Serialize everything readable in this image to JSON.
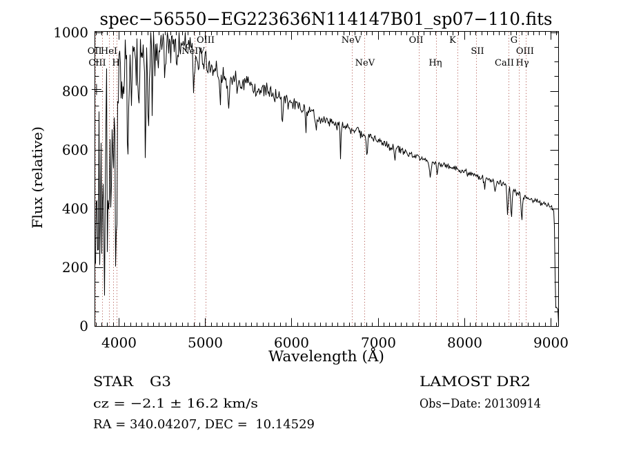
{
  "title": "spec−56550−EG223636N114147B01_sp07−110.fits",
  "axes": {
    "xlabel": "Wavelength (Å)",
    "ylabel": "Flux (relative)"
  },
  "annotations": {
    "class_label": "STAR",
    "subclass": "G3",
    "survey": "LAMOST DR2",
    "cz": "cz = −2.1 ± 16.2 km/s",
    "obs_date": "Obs−Date: 20130914",
    "ra_dec": "RA = 340.04207, DEC =  10.14529"
  },
  "chart_data": {
    "type": "line",
    "title": "spec−56550−EG223636N114147B01_sp07−110.fits",
    "xlabel": "Wavelength (Å)",
    "ylabel": "Flux (relative)",
    "xlim": [
      3720,
      9090
    ],
    "ylim": [
      0,
      1000
    ],
    "x_ticks": [
      4000,
      5000,
      6000,
      7000,
      8000,
      9000
    ],
    "y_ticks": [
      0,
      200,
      400,
      600,
      800,
      1000
    ],
    "grid": false,
    "series": [
      {
        "name": "spectrum",
        "color": "#000000",
        "noise_seed": 1337,
        "continuum_points": [
          [
            3715,
            470
          ],
          [
            3728,
            590
          ],
          [
            3745,
            670
          ],
          [
            3765,
            720
          ],
          [
            3790,
            760
          ],
          [
            3815,
            790
          ],
          [
            3845,
            818
          ],
          [
            3875,
            840
          ],
          [
            3905,
            858
          ],
          [
            3945,
            868
          ],
          [
            3985,
            878
          ],
          [
            4025,
            888
          ],
          [
            4065,
            896
          ],
          [
            4105,
            904
          ],
          [
            4155,
            912
          ],
          [
            4205,
            918
          ],
          [
            4255,
            924
          ],
          [
            4300,
            918
          ],
          [
            4355,
            936
          ],
          [
            4405,
            948
          ],
          [
            4455,
            958
          ],
          [
            4505,
            963
          ],
          [
            4565,
            967
          ],
          [
            4625,
            968
          ],
          [
            4685,
            966
          ],
          [
            4745,
            960
          ],
          [
            4805,
            950
          ],
          [
            4865,
            938
          ],
          [
            4925,
            928
          ],
          [
            4985,
            906
          ],
          [
            5025,
            888
          ],
          [
            5085,
            872
          ],
          [
            5145,
            861
          ],
          [
            5205,
            851
          ],
          [
            5265,
            843
          ],
          [
            5325,
            836
          ],
          [
            5425,
            828
          ],
          [
            5505,
            816
          ],
          [
            5605,
            803
          ],
          [
            5705,
            795
          ],
          [
            5825,
            787
          ],
          [
            5905,
            774
          ],
          [
            6005,
            757
          ],
          [
            6105,
            744
          ],
          [
            6225,
            728
          ],
          [
            6305,
            715
          ],
          [
            6405,
            701
          ],
          [
            6505,
            689
          ],
          [
            6625,
            681
          ],
          [
            6705,
            668
          ],
          [
            6805,
            655
          ],
          [
            6905,
            641
          ],
          [
            7025,
            628
          ],
          [
            7105,
            618
          ],
          [
            7205,
            606
          ],
          [
            7305,
            594
          ],
          [
            7425,
            583
          ],
          [
            7505,
            572
          ],
          [
            7605,
            562
          ],
          [
            7705,
            553
          ],
          [
            7825,
            545
          ],
          [
            7905,
            535
          ],
          [
            8005,
            524
          ],
          [
            8105,
            513
          ],
          [
            8225,
            502
          ],
          [
            8305,
            495
          ],
          [
            8405,
            490
          ],
          [
            8460,
            487
          ],
          [
            8525,
            469
          ],
          [
            8585,
            458
          ],
          [
            8645,
            448
          ],
          [
            8700,
            440
          ],
          [
            8785,
            430
          ],
          [
            8865,
            421
          ],
          [
            8940,
            415
          ],
          [
            9000,
            410
          ],
          [
            9030,
            402
          ],
          [
            9042,
            330
          ],
          [
            9050,
            120
          ],
          [
            9056,
            62
          ],
          [
            9080,
            58
          ],
          [
            9086,
            8
          ]
        ],
        "noise_amplitude_points": [
          [
            3715,
            330
          ],
          [
            3755,
            315
          ],
          [
            3795,
            295
          ],
          [
            3835,
            268
          ],
          [
            3875,
            248
          ],
          [
            3915,
            238
          ],
          [
            3955,
            232
          ],
          [
            3995,
            195
          ],
          [
            4035,
            148
          ],
          [
            4085,
            118
          ],
          [
            4155,
            98
          ],
          [
            4255,
            84
          ],
          [
            4355,
            74
          ],
          [
            4455,
            64
          ],
          [
            4555,
            57
          ],
          [
            4705,
            51
          ],
          [
            4865,
            45
          ],
          [
            5005,
            41
          ],
          [
            5205,
            35
          ],
          [
            5405,
            29
          ],
          [
            5605,
            25
          ],
          [
            5805,
            22
          ],
          [
            6005,
            20
          ],
          [
            6205,
            18
          ],
          [
            6405,
            16
          ],
          [
            6605,
            15
          ],
          [
            6905,
            13
          ],
          [
            7205,
            12
          ],
          [
            7505,
            11
          ],
          [
            7805,
            10
          ],
          [
            8105,
            10
          ],
          [
            8405,
            9
          ],
          [
            8705,
            9
          ],
          [
            9005,
            8
          ],
          [
            9086,
            7
          ]
        ],
        "absorption_features": [
          [
            3727,
            255,
            7
          ],
          [
            3752,
            390,
            9
          ],
          [
            3775,
            315,
            7
          ],
          [
            3799,
            355,
            8
          ],
          [
            3821,
            295,
            7
          ],
          [
            3836,
            325,
            7
          ],
          [
            3861,
            305,
            7
          ],
          [
            3889,
            395,
            8
          ],
          [
            3913,
            325,
            6
          ],
          [
            3934,
            425,
            8
          ],
          [
            3953,
            295,
            6
          ],
          [
            3969,
            650,
            8
          ],
          [
            4046,
            155,
            6
          ],
          [
            4102,
            275,
            8
          ],
          [
            4145,
            115,
            6
          ],
          [
            4227,
            165,
            6
          ],
          [
            4305,
            345,
            7
          ],
          [
            4341,
            305,
            7
          ],
          [
            4384,
            155,
            6
          ],
          [
            4456,
            115,
            5
          ],
          [
            4532,
            95,
            5
          ],
          [
            4669,
            88,
            5
          ],
          [
            4861,
            160,
            7
          ],
          [
            4922,
            78,
            5
          ],
          [
            5172,
            92,
            9
          ],
          [
            5270,
            105,
            7
          ],
          [
            5892,
            100,
            7
          ],
          [
            6163,
            58,
            6
          ],
          [
            6283,
            52,
            6
          ],
          [
            6563,
            118,
            5
          ],
          [
            6871,
            68,
            7
          ],
          [
            7192,
            44,
            6
          ],
          [
            7602,
            52,
            9
          ],
          [
            7682,
            38,
            6
          ],
          [
            8232,
            38,
            6
          ],
          [
            8352,
            42,
            6
          ],
          [
            8498,
            98,
            7
          ],
          [
            8542,
            94,
            7
          ],
          [
            8662,
            90,
            7
          ]
        ],
        "clip": [
          0,
          1000
        ]
      }
    ],
    "error_marker": {
      "wavelength": 3744,
      "flux": 805
    },
    "spectral_line_markers": {
      "line_color": "#a8443c",
      "dotted_line_wavelengths": [
        3728,
        3808,
        3888,
        3936,
        3976,
        4879,
        5006,
        6700,
        6843,
        7474,
        7674,
        7922,
        8137,
        8513,
        8632,
        8712
      ],
      "labels": [
        {
          "text": "OIII",
          "wavelength": 5006,
          "row": 1
        },
        {
          "text": "NeV",
          "wavelength": 6692,
          "row": 1
        },
        {
          "text": "OII",
          "wavelength": 7443,
          "row": 1
        },
        {
          "text": "K",
          "wavelength": 7866,
          "row": 1
        },
        {
          "text": "G",
          "wavelength": 8577,
          "row": 1
        },
        {
          "text": "OII",
          "wavelength": 3722,
          "row": 2
        },
        {
          "text": "HeI",
          "wavelength": 3888,
          "row": 2
        },
        {
          "text": "NeIV",
          "wavelength": 4863,
          "row": 2
        },
        {
          "text": "SII",
          "wavelength": 8153,
          "row": 2
        },
        {
          "text": "OIII",
          "wavelength": 8704,
          "row": 2
        },
        {
          "text": "CIII",
          "wavelength": 3752,
          "row": 3
        },
        {
          "text": "H",
          "wavelength": 3968,
          "row": 3
        },
        {
          "text": "NeV",
          "wavelength": 6851,
          "row": 3
        },
        {
          "text": "Hη",
          "wavelength": 7666,
          "row": 3
        },
        {
          "text": "CaII",
          "wavelength": 8465,
          "row": 3
        },
        {
          "text": "Hγ",
          "wavelength": 8673,
          "row": 3
        }
      ]
    }
  }
}
